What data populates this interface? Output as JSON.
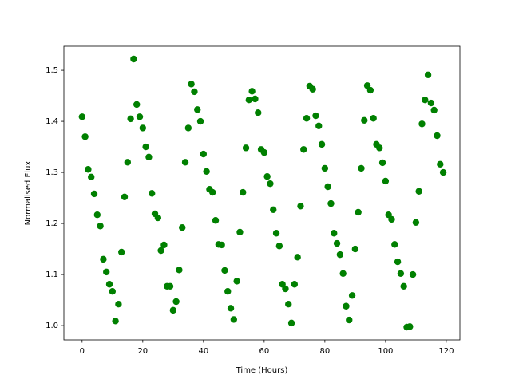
{
  "chart_data": {
    "type": "scatter",
    "x_label": "Time (Hours)",
    "y_label": "Normalised Flux",
    "color": "#008000",
    "x": [
      0,
      1,
      2,
      3,
      4,
      5,
      6,
      7,
      8,
      9,
      10,
      11,
      12,
      13,
      14,
      15,
      16,
      17,
      18,
      19,
      20,
      21,
      22,
      23,
      24,
      25,
      26,
      27,
      28,
      29,
      30,
      31,
      32,
      33,
      34,
      35,
      36,
      37,
      38,
      39,
      40,
      41,
      42,
      43,
      44,
      45,
      46,
      47,
      48,
      49,
      50,
      51,
      52,
      53,
      54,
      55,
      56,
      57,
      58,
      59,
      60,
      61,
      62,
      63,
      64,
      65,
      66,
      67,
      68,
      69,
      70,
      71,
      72,
      73,
      74,
      75,
      76,
      77,
      78,
      79,
      80,
      81,
      82,
      83,
      84,
      85,
      86,
      87,
      88,
      89,
      90,
      91,
      92,
      93,
      94,
      95,
      96,
      97,
      98,
      99,
      100,
      101,
      102,
      103,
      104,
      105,
      106,
      107,
      108,
      109,
      110,
      111,
      112,
      113,
      114,
      115,
      116,
      117,
      118,
      119
    ],
    "values": [
      1.409,
      1.37,
      1.306,
      1.291,
      1.258,
      1.217,
      1.195,
      1.13,
      1.105,
      1.081,
      1.067,
      1.009,
      1.042,
      1.144,
      1.252,
      1.32,
      1.405,
      1.522,
      1.433,
      1.409,
      1.387,
      1.35,
      1.33,
      1.259,
      1.219,
      1.211,
      1.147,
      1.158,
      1.077,
      1.077,
      1.03,
      1.047,
      1.109,
      1.192,
      1.32,
      1.387,
      1.473,
      1.458,
      1.423,
      1.4,
      1.336,
      1.302,
      1.267,
      1.261,
      1.206,
      1.159,
      1.158,
      1.108,
      1.067,
      1.034,
      1.012,
      1.087,
      1.183,
      1.261,
      1.348,
      1.442,
      1.459,
      1.444,
      1.417,
      1.345,
      1.339,
      1.292,
      1.278,
      1.227,
      1.181,
      1.156,
      1.081,
      1.072,
      1.042,
      1.005,
      1.081,
      1.134,
      1.234,
      1.345,
      1.406,
      1.469,
      1.463,
      1.411,
      1.391,
      1.355,
      1.308,
      1.272,
      1.239,
      1.181,
      1.161,
      1.139,
      1.102,
      1.038,
      1.011,
      1.059,
      1.15,
      1.222,
      1.308,
      1.402,
      1.47,
      1.461,
      1.406,
      1.355,
      1.348,
      1.319,
      1.283,
      1.217,
      1.208,
      1.159,
      1.125,
      1.102,
      1.077,
      0.997,
      0.998,
      1.1,
      1.202,
      1.263,
      1.395,
      1.442,
      1.491,
      1.436,
      1.422,
      1.372,
      1.316,
      1.3
    ],
    "xlim": [
      -6,
      124.5
    ],
    "ylim": [
      0.972,
      1.547
    ],
    "xticks": [
      0,
      20,
      40,
      60,
      80,
      100,
      120
    ],
    "yticks": [
      {
        "value": 1.0,
        "label": "1.0"
      },
      1.1,
      1.2,
      1.3,
      1.4,
      1.5
    ]
  }
}
